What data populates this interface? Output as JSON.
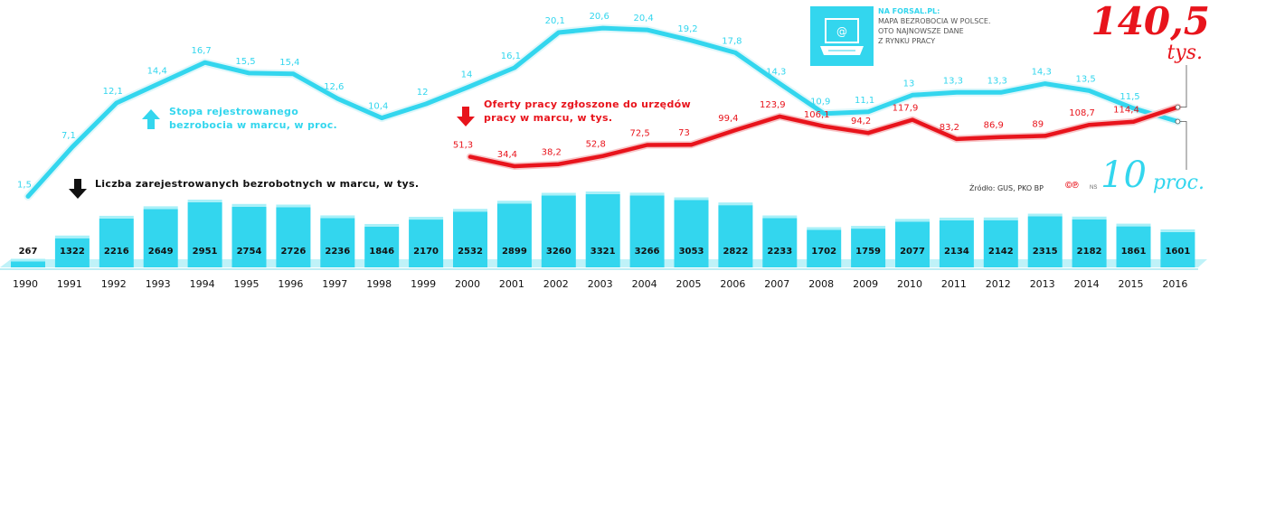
{
  "chart_data": {
    "type": "bar+line",
    "x": [
      "1990",
      "1991",
      "1992",
      "1993",
      "1994",
      "1995",
      "1996",
      "1997",
      "1998",
      "1999",
      "2000",
      "2001",
      "2002",
      "2003",
      "2004",
      "2005",
      "2006",
      "2007",
      "2008",
      "2009",
      "2010",
      "2011",
      "2012",
      "2013",
      "2014",
      "2015",
      "2016"
    ],
    "bars": {
      "name": "Liczba zarejestrowanych bezrobotnych w marcu, w tys.",
      "values": [
        267,
        1322,
        2216,
        2649,
        2951,
        2754,
        2726,
        2236,
        1846,
        2170,
        2532,
        2899,
        3260,
        3321,
        3266,
        3053,
        2822,
        2233,
        1702,
        1759,
        2077,
        2134,
        2142,
        2315,
        2182,
        1861,
        1601
      ],
      "labels": [
        "267",
        "1322",
        "2216",
        "2649",
        "2951",
        "2754",
        "2726",
        "2236",
        "1846",
        "2170",
        "2532",
        "2899",
        "3260",
        "3321",
        "3266",
        "3053",
        "2822",
        "2233",
        "1702",
        "1759",
        "2077",
        "2134",
        "2142",
        "2315",
        "2182",
        "1861",
        "1601"
      ],
      "color": "#33d6ee"
    },
    "rate_series": {
      "name": "Stopa rejestrowanego bezrobocia w marcu, w proc.",
      "values": [
        1.5,
        7.1,
        12.1,
        14.4,
        16.7,
        15.5,
        15.4,
        12.6,
        10.4,
        12.0,
        14.0,
        16.1,
        20.1,
        20.6,
        20.4,
        19.2,
        17.8,
        14.3,
        10.9,
        11.1,
        13.0,
        13.3,
        13.3,
        14.3,
        13.5,
        11.5,
        10.0
      ],
      "labels": [
        "1,5",
        "7,1",
        "12,1",
        "14,4",
        "16,7",
        "15,5",
        "15,4",
        "12,6",
        "10,4",
        "12",
        "14",
        "16,1",
        "20,1",
        "20,6",
        "20,4",
        "19,2",
        "17,8",
        "14,3",
        "10,9",
        "11,1",
        "13",
        "13,3",
        "13,3",
        "14,3",
        "13,5",
        "11,5",
        ""
      ],
      "color": "#33d6ee"
    },
    "offers_series": {
      "name": "Oferty pracy zgłoszone do urzędów pracy w marcu, w tys.",
      "start_index": 10,
      "values": [
        51.3,
        34.4,
        38.2,
        52.8,
        72.5,
        73.0,
        99.4,
        123.9,
        106.1,
        94.2,
        117.9,
        83.2,
        86.9,
        89.0,
        108.7,
        114.4,
        140.5
      ],
      "labels": [
        "51,3",
        "34,4",
        "38,2",
        "52,8",
        "72,5",
        "73",
        "99,4",
        "123,9",
        "106,1",
        "94,2",
        "117,9",
        "83,2",
        "86,9",
        "89",
        "108,7",
        "114,4",
        ""
      ],
      "color": "#e8141c"
    }
  },
  "legend": {
    "rate": "Stopa rejestrowanego bezrobocia w marcu, w proc.",
    "offers": "Oferty pracy zgłoszone do urzędów pracy w marcu, w tys.",
    "unemployed": "Liczba zarejestrowanych bezrobotnych w marcu, w tys."
  },
  "promo": {
    "icon": "computer-at-icon",
    "head": "Na forsal.pl:",
    "line1": "Mapa bezrobocia w Polsce.",
    "line2": "Oto najnowsze dane",
    "line3": "z rynku pracy"
  },
  "callouts": {
    "offers_value": "140,5",
    "offers_unit": "tys.",
    "rate_value": "10",
    "rate_unit": "proc."
  },
  "source": "Źródło: GUS, PKO BP",
  "copyright": "©℗",
  "credit": "NS"
}
